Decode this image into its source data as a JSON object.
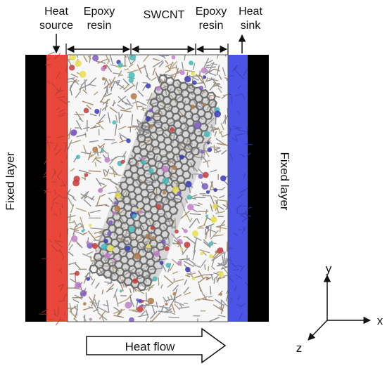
{
  "labels": {
    "heat_source": [
      "Heat",
      "source"
    ],
    "epoxy_left": [
      "Epoxy",
      "resin"
    ],
    "swcnt": "SWCNT",
    "epoxy_right": [
      "Epoxy",
      "resin"
    ],
    "heat_sink": [
      "Heat",
      "sink"
    ],
    "fixed_layer_left": "Fixed layer",
    "fixed_layer_right": "Fixed layer",
    "heat_flow": "Heat flow"
  },
  "axes": {
    "x": "x",
    "y": "y",
    "z": "z"
  },
  "colors": {
    "fixed_layer": "#000000",
    "heat_source": "#e8473a",
    "heat_sink": "#4a55e8",
    "epoxy_bonds": "#8c8c8c",
    "swcnt": "#6e6e6e"
  }
}
